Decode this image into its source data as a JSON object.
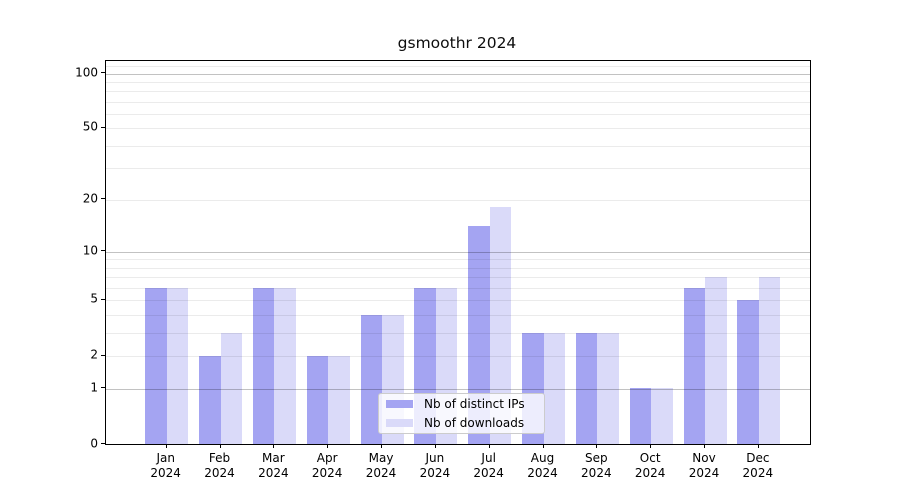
{
  "figure_title": "gsmoothr 2024",
  "chart_data": {
    "type": "bar",
    "title": "gsmoothr 2024",
    "categories": [
      "Jan 2024",
      "Feb 2024",
      "Mar 2024",
      "Apr 2024",
      "May 2024",
      "Jun 2024",
      "Jul 2024",
      "Aug 2024",
      "Sep 2024",
      "Oct 2024",
      "Nov 2024",
      "Dec 2024"
    ],
    "series": [
      {
        "name": "Nb of distinct IPs",
        "color": "#a4a4f2",
        "values": [
          6,
          2,
          6,
          2,
          4,
          6,
          14,
          3,
          3,
          1,
          6,
          5
        ]
      },
      {
        "name": "Nb of downloads",
        "color": "#dadaf9",
        "values": [
          6,
          3,
          6,
          2,
          4,
          6,
          18,
          3,
          3,
          1,
          7,
          7
        ]
      }
    ],
    "xlabel": "",
    "ylabel": "",
    "yscale": "log1p",
    "ylim": [
      0,
      117
    ],
    "yticks": [
      0,
      1,
      2,
      5,
      10,
      20,
      50,
      100
    ],
    "major_grid_values": [
      1,
      10,
      100
    ],
    "minor_grid_values": [
      2,
      3,
      4,
      5,
      6,
      7,
      8,
      9,
      20,
      30,
      40,
      50,
      60,
      70,
      80,
      90,
      110
    ],
    "grid": true,
    "legend_position": "lower center-left inside plot"
  },
  "colors": {
    "ips_bar": "#a4a4f2",
    "downloads_bar": "#dadaf9",
    "major_grid": "#c2c2c2",
    "minor_grid": "#ebebeb",
    "spine": "#000000",
    "text": "#000000",
    "legend_border": "#cccccc"
  }
}
